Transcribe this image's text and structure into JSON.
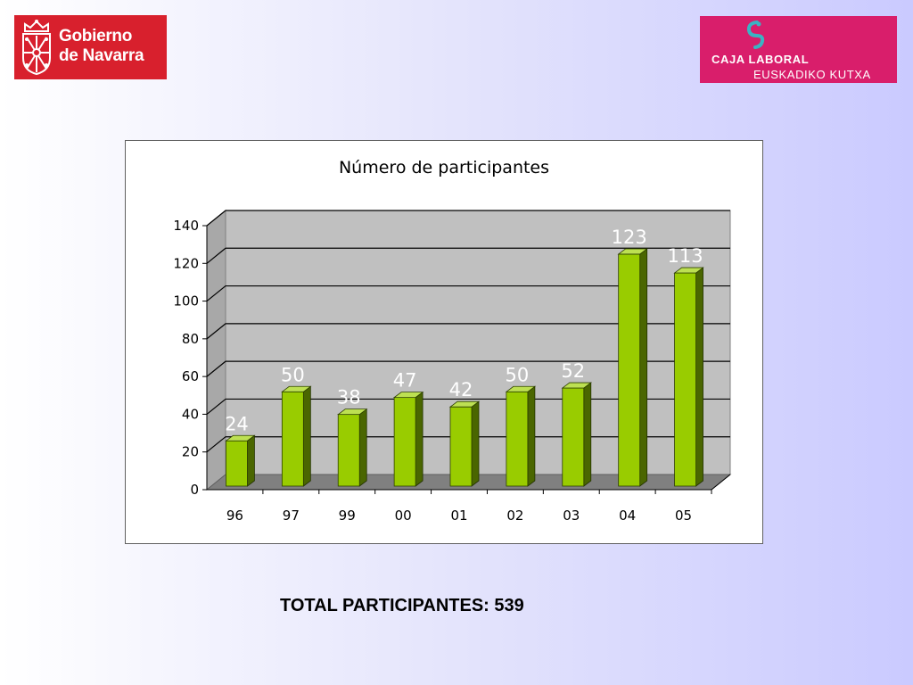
{
  "logos": {
    "left": {
      "line1": "Gobierno",
      "line2": "de Navarra",
      "color": "#d8202d"
    },
    "right": {
      "line1": "CAJA LABORAL",
      "line2": "EUSKADIKO KUTXA",
      "color": "#d91e6b",
      "mark_color": "#3bb3c3"
    }
  },
  "chart_data": {
    "type": "bar",
    "title": "Número de participantes",
    "categories": [
      "96",
      "97",
      "99",
      "00",
      "01",
      "02",
      "03",
      "04",
      "05"
    ],
    "values": [
      24,
      50,
      38,
      47,
      42,
      50,
      52,
      123,
      113
    ],
    "xlabel": "",
    "ylabel": "",
    "ylim": [
      0,
      140
    ],
    "yticks": [
      0,
      20,
      40,
      60,
      80,
      100,
      120,
      140
    ],
    "grid": true,
    "legend": "none",
    "colors": {
      "bar_front": "#99cc00",
      "bar_top": "#bde052",
      "bar_side": "#4a6600",
      "plot_back": "#c0c0c0",
      "plot_floor": "#808080"
    }
  },
  "total": {
    "text": "TOTAL PARTICIPANTES: 539"
  }
}
